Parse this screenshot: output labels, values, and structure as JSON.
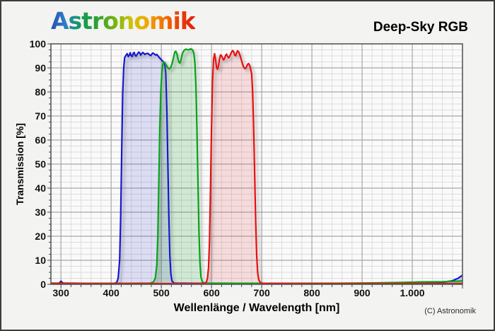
{
  "header": {
    "logo_text": "Astronomik",
    "title": "Deep-Sky RGB"
  },
  "footer": {
    "copyright": "(C) Astronomik"
  },
  "colors": {
    "plot_background": "#fafafa",
    "grid_minor": "#dcdcdc",
    "grid_major": "#a6a6a6",
    "frame": "#58595b",
    "blue_line": "#1418cf",
    "green_line": "#00a413",
    "red_line": "#ea0c0c"
  },
  "chart_data": {
    "type": "line",
    "title": "Deep-Sky RGB",
    "x_label": "Wellenlänge / Wavelength [nm]",
    "y_label": "Transmission [%]",
    "x_range": [
      280,
      1100
    ],
    "y_range": [
      0,
      100
    ],
    "x_major_step": 100,
    "x_minor_step": 20,
    "y_major_step": 10,
    "y_minor_step": 2.5,
    "grid": true,
    "legend": "none",
    "x_ticks": [
      {
        "value": 300,
        "label": "300"
      },
      {
        "value": 400,
        "label": "400"
      },
      {
        "value": 500,
        "label": "500"
      },
      {
        "value": 600,
        "label": "600"
      },
      {
        "value": 700,
        "label": "700"
      },
      {
        "value": 800,
        "label": "800"
      },
      {
        "value": 900,
        "label": "900"
      },
      {
        "value": 1000,
        "label": "1.000"
      }
    ],
    "y_ticks": [
      {
        "value": 0,
        "label": "0"
      },
      {
        "value": 10,
        "label": "10"
      },
      {
        "value": 20,
        "label": "20"
      },
      {
        "value": 30,
        "label": "30"
      },
      {
        "value": 40,
        "label": "40"
      },
      {
        "value": 50,
        "label": "50"
      },
      {
        "value": 60,
        "label": "60"
      },
      {
        "value": 70,
        "label": "70"
      },
      {
        "value": 80,
        "label": "80"
      },
      {
        "value": 90,
        "label": "90"
      },
      {
        "value": 100,
        "label": "100"
      }
    ],
    "series": [
      {
        "name": "blue",
        "color": "#1418cf",
        "fill": "rgba(70,70,205,0.17)",
        "points": [
          [
            280,
            0.4
          ],
          [
            296,
            0.4
          ],
          [
            300,
            1.3
          ],
          [
            304,
            0.5
          ],
          [
            340,
            0.4
          ],
          [
            380,
            0.4
          ],
          [
            406,
            0.4
          ],
          [
            411,
            0.7
          ],
          [
            414,
            2.5
          ],
          [
            417,
            10
          ],
          [
            419,
            28
          ],
          [
            421,
            55
          ],
          [
            423,
            79
          ],
          [
            425,
            90
          ],
          [
            427,
            94.3
          ],
          [
            430,
            95.4
          ],
          [
            432,
            95.9
          ],
          [
            434,
            94.7
          ],
          [
            436,
            95.1
          ],
          [
            438,
            96.3
          ],
          [
            440,
            95.1
          ],
          [
            442,
            94.7
          ],
          [
            444,
            96.1
          ],
          [
            446,
            96.4
          ],
          [
            448,
            95.1
          ],
          [
            450,
            94.9
          ],
          [
            452,
            95.7
          ],
          [
            455,
            96.6
          ],
          [
            457,
            96.2
          ],
          [
            459,
            95.3
          ],
          [
            461,
            95.9
          ],
          [
            463,
            96.4
          ],
          [
            465,
            96.1
          ],
          [
            467,
            95.6
          ],
          [
            470,
            95.9
          ],
          [
            473,
            96.1
          ],
          [
            476,
            95.5
          ],
          [
            479,
            95.1
          ],
          [
            481,
            95.7
          ],
          [
            483,
            96.2
          ],
          [
            486,
            95.8
          ],
          [
            489,
            95.3
          ],
          [
            491,
            95.6
          ],
          [
            493,
            95.1
          ],
          [
            496,
            94.3
          ],
          [
            499,
            93.6
          ],
          [
            502,
            92.9
          ],
          [
            505,
            92.3
          ],
          [
            507,
            91.3
          ],
          [
            509,
            87.5
          ],
          [
            511,
            72
          ],
          [
            513,
            50
          ],
          [
            515,
            28
          ],
          [
            517,
            12
          ],
          [
            519,
            4.5
          ],
          [
            521,
            1.5
          ],
          [
            525,
            0.5
          ],
          [
            600,
            0.35
          ],
          [
            700,
            0.3
          ],
          [
            800,
            0.3
          ],
          [
            900,
            0.3
          ],
          [
            980,
            0.4
          ],
          [
            1030,
            0.5
          ],
          [
            1060,
            0.8
          ],
          [
            1080,
            1.5
          ],
          [
            1092,
            2.6
          ],
          [
            1100,
            3.8
          ]
        ]
      },
      {
        "name": "green",
        "color": "#00a413",
        "fill": "rgba(45,165,60,0.20)",
        "points": [
          [
            280,
            0.5
          ],
          [
            350,
            0.4
          ],
          [
            440,
            0.4
          ],
          [
            478,
            0.5
          ],
          [
            484,
            0.9
          ],
          [
            488,
            2.5
          ],
          [
            491,
            8
          ],
          [
            493,
            20
          ],
          [
            495,
            42
          ],
          [
            497,
            65
          ],
          [
            499,
            80
          ],
          [
            501,
            88
          ],
          [
            503,
            91.5
          ],
          [
            505,
            92.4
          ],
          [
            507,
            92.2
          ],
          [
            510,
            91
          ],
          [
            513,
            90
          ],
          [
            516,
            89.6
          ],
          [
            519,
            90.3
          ],
          [
            522,
            92.3
          ],
          [
            525,
            95
          ],
          [
            527,
            96.7
          ],
          [
            529,
            96.9
          ],
          [
            531,
            95.9
          ],
          [
            533,
            93.9
          ],
          [
            535,
            92.4
          ],
          [
            537,
            92
          ],
          [
            539,
            93.1
          ],
          [
            541,
            95.1
          ],
          [
            543,
            96.5
          ],
          [
            546,
            97.4
          ],
          [
            549,
            97.8
          ],
          [
            552,
            97.6
          ],
          [
            555,
            97.5
          ],
          [
            558,
            97.9
          ],
          [
            561,
            97.7
          ],
          [
            563,
            97.2
          ],
          [
            565,
            95.8
          ],
          [
            567,
            92
          ],
          [
            569,
            82
          ],
          [
            571,
            65
          ],
          [
            573,
            42
          ],
          [
            575,
            22
          ],
          [
            577,
            9
          ],
          [
            579,
            3
          ],
          [
            582,
            1
          ],
          [
            586,
            0.5
          ],
          [
            650,
            0.4
          ],
          [
            750,
            0.4
          ],
          [
            850,
            0.45
          ],
          [
            930,
            0.6
          ],
          [
            980,
            0.8
          ],
          [
            1020,
            1
          ],
          [
            1060,
            1.1
          ],
          [
            1100,
            1.4
          ]
        ]
      },
      {
        "name": "red",
        "color": "#ea0c0c",
        "fill": "rgba(225,60,70,0.16)",
        "points": [
          [
            280,
            0.4
          ],
          [
            400,
            0.3
          ],
          [
            540,
            0.3
          ],
          [
            580,
            0.35
          ],
          [
            587,
            0.5
          ],
          [
            590,
            1
          ],
          [
            592,
            2.5
          ],
          [
            594,
            7
          ],
          [
            596,
            18
          ],
          [
            598,
            40
          ],
          [
            600,
            65
          ],
          [
            602,
            84
          ],
          [
            604,
            93.5
          ],
          [
            606,
            95.9
          ],
          [
            608,
            93.5
          ],
          [
            610,
            90.2
          ],
          [
            612,
            89.4
          ],
          [
            614,
            91
          ],
          [
            616,
            93.8
          ],
          [
            618,
            95.4
          ],
          [
            620,
            95.1
          ],
          [
            622,
            94.1
          ],
          [
            624,
            93.3
          ],
          [
            626,
            94
          ],
          [
            628,
            95.2
          ],
          [
            630,
            95.7
          ],
          [
            632,
            94.8
          ],
          [
            634,
            94.2
          ],
          [
            636,
            94.7
          ],
          [
            638,
            95.7
          ],
          [
            640,
            96.6
          ],
          [
            642,
            97.2
          ],
          [
            644,
            96.8
          ],
          [
            646,
            95.4
          ],
          [
            648,
            95
          ],
          [
            650,
            96.2
          ],
          [
            652,
            97.1
          ],
          [
            654,
            96.7
          ],
          [
            656,
            95.6
          ],
          [
            658,
            94.4
          ],
          [
            660,
            92.9
          ],
          [
            662,
            91.6
          ],
          [
            664,
            90.4
          ],
          [
            666,
            89.7
          ],
          [
            668,
            89.8
          ],
          [
            670,
            90.6
          ],
          [
            672,
            91.5
          ],
          [
            674,
            91.8
          ],
          [
            676,
            91
          ],
          [
            678,
            89.5
          ],
          [
            680,
            87.5
          ],
          [
            682,
            80
          ],
          [
            684,
            65
          ],
          [
            686,
            45
          ],
          [
            688,
            26
          ],
          [
            690,
            12
          ],
          [
            692,
            5
          ],
          [
            694,
            2
          ],
          [
            697,
            0.8
          ],
          [
            702,
            0.4
          ],
          [
            800,
            0.3
          ],
          [
            950,
            0.3
          ],
          [
            1100,
            0.3
          ]
        ]
      }
    ]
  }
}
